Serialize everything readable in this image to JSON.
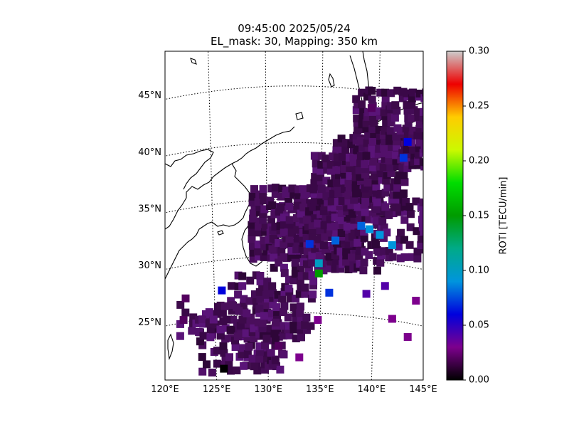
{
  "title_line1": "09:45:00 2025/05/24",
  "title_line2": "EL_mask: 30, Mapping: 350 km",
  "chart_data": {
    "type": "heatmap",
    "title": "09:45:00 2025/05/24",
    "subtitle": "EL_mask: 30, Mapping: 350 km",
    "xlim": [
      120,
      145
    ],
    "ylim": [
      20,
      49
    ],
    "x_ticks": [
      "120°E",
      "125°E",
      "130°E",
      "135°E",
      "140°E",
      "145°E"
    ],
    "y_ticks": [
      "25°N",
      "30°N",
      "35°N",
      "40°N",
      "45°N"
    ],
    "grid": "dotted lat/lon graticule (5° spacing)",
    "colorbar": {
      "label": "ROTI [TECU/min]",
      "min": 0.0,
      "max": 0.3,
      "ticks": [
        "0.00",
        "0.05",
        "0.10",
        "0.15",
        "0.20",
        "0.25",
        "0.30"
      ],
      "colormap": "nipy_spectral"
    },
    "dominant_value": "~0.03–0.05 TECU/min (dark purple) across Japan and surrounding seas",
    "points": [
      {
        "lon": 139.0,
        "lat": 33.6,
        "roti": 0.08
      },
      {
        "lon": 139.8,
        "lat": 33.3,
        "roti": 0.09
      },
      {
        "lon": 140.8,
        "lat": 32.8,
        "roti": 0.09
      },
      {
        "lon": 134.9,
        "lat": 30.3,
        "roti": 0.1
      },
      {
        "lon": 134.9,
        "lat": 29.4,
        "roti": 0.15
      },
      {
        "lon": 135.9,
        "lat": 27.7,
        "roti": 0.07
      },
      {
        "lon": 142.0,
        "lat": 31.9,
        "roti": 0.09
      },
      {
        "lon": 143.1,
        "lat": 39.6,
        "roti": 0.07
      },
      {
        "lon": 143.5,
        "lat": 41.0,
        "roti": 0.06
      },
      {
        "lon": 134.0,
        "lat": 32.0,
        "roti": 0.07
      },
      {
        "lon": 136.5,
        "lat": 32.3,
        "roti": 0.08
      },
      {
        "lon": 125.5,
        "lat": 27.9,
        "roti": 0.06
      },
      {
        "lon": 125.7,
        "lat": 21.0,
        "roti": 0.0
      },
      {
        "lon": 121.8,
        "lat": 25.3,
        "roti": 0.02
      },
      {
        "lon": 122.0,
        "lat": 27.2,
        "roti": 0.02
      },
      {
        "lon": 140.0,
        "lat": 44.0,
        "roti": 0.02
      },
      {
        "lon": 131.0,
        "lat": 23.0,
        "roti": 0.02
      },
      {
        "lon": 142.0,
        "lat": 25.4,
        "roti": 0.03
      },
      {
        "lon": 144.3,
        "lat": 27.0,
        "roti": 0.03
      },
      {
        "lon": 143.5,
        "lat": 23.8,
        "roti": 0.03
      },
      {
        "lon": 139.5,
        "lat": 27.6,
        "roti": 0.04
      },
      {
        "lon": 141.3,
        "lat": 28.3,
        "roti": 0.04
      },
      {
        "lon": 134.8,
        "lat": 25.3,
        "roti": 0.03
      },
      {
        "lon": 133.0,
        "lat": 22.0,
        "roti": 0.03
      }
    ]
  }
}
